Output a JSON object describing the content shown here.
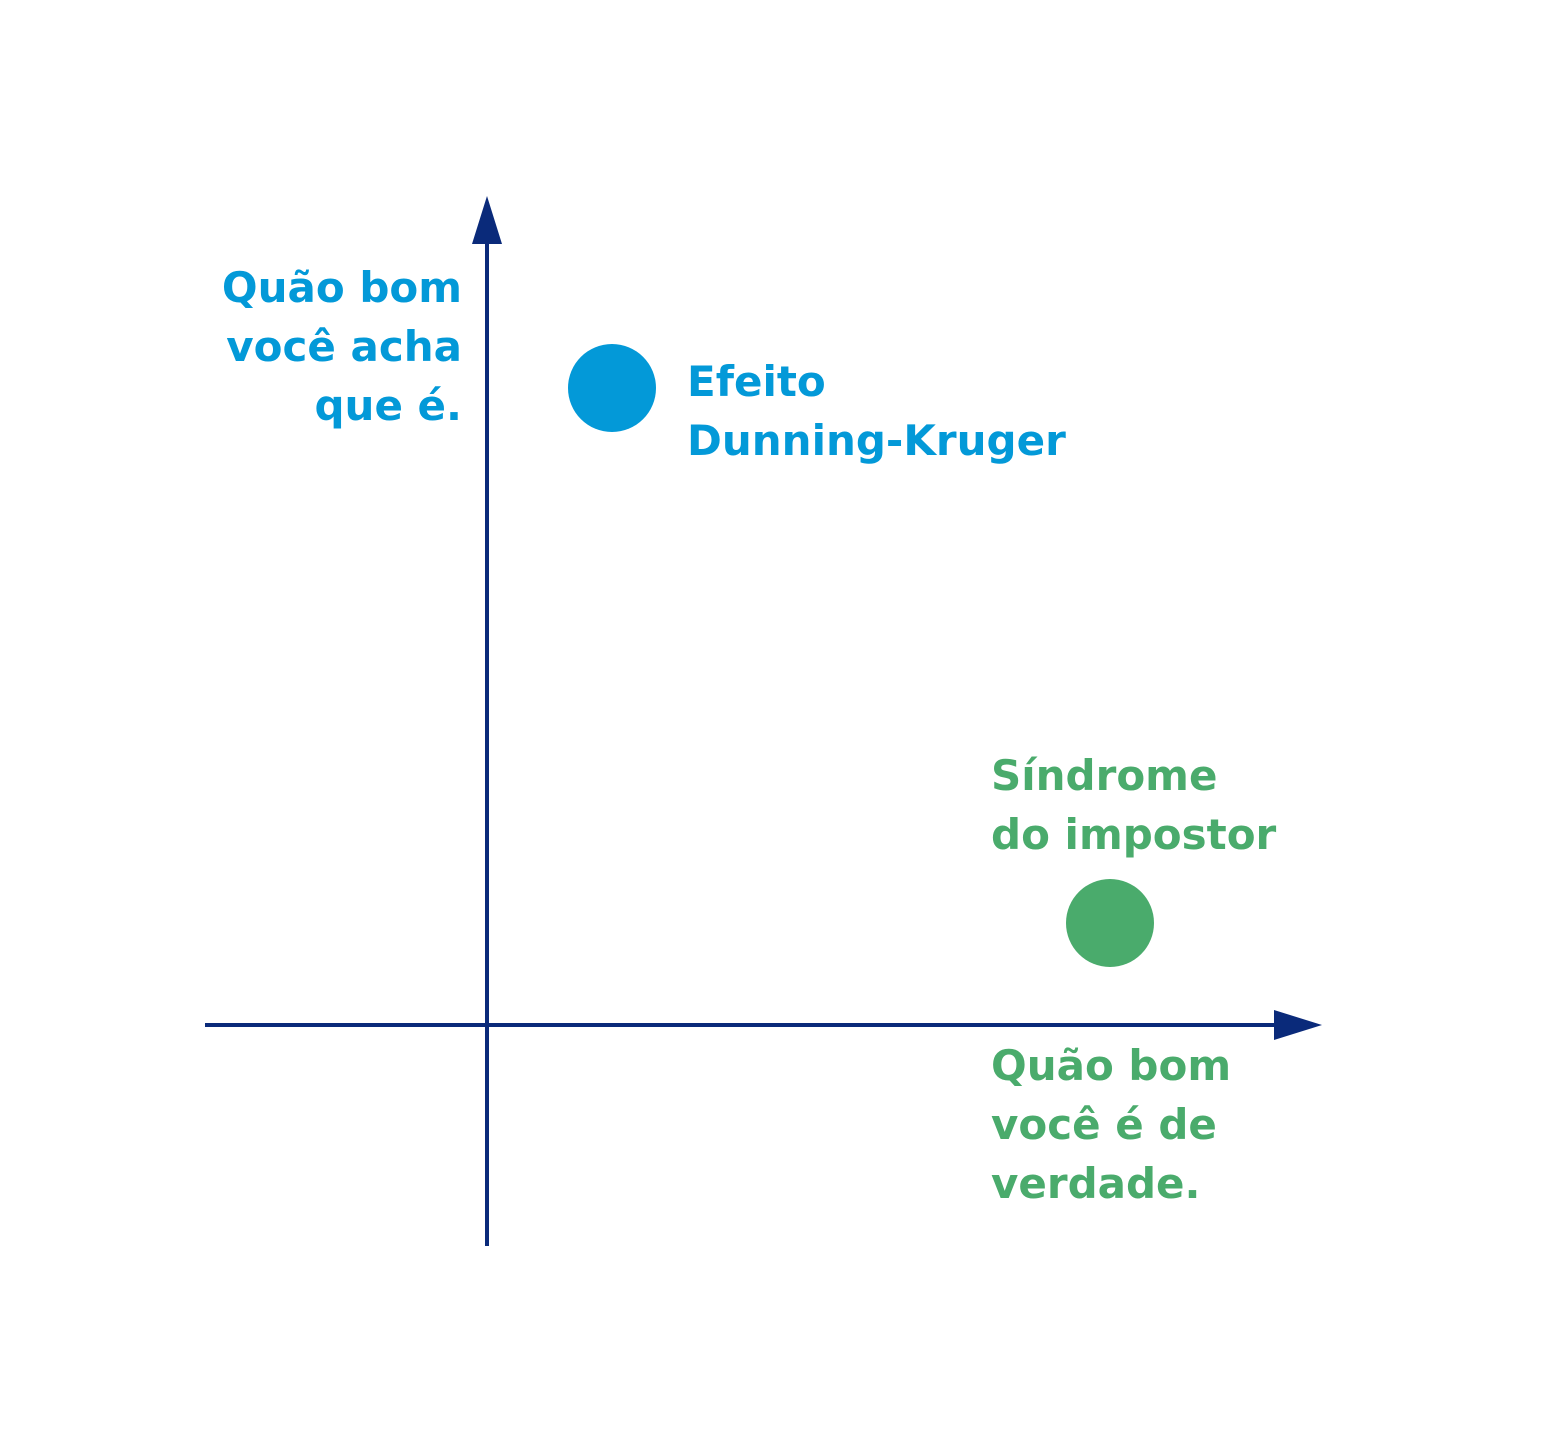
{
  "colors": {
    "axis": "#0a2a7a",
    "dunning_kruger": "#0399d8",
    "impostor": "#4aab6c",
    "background": "#ffffff"
  },
  "axes": {
    "y_label_lines": [
      "Quão bom",
      "você acha",
      "que é."
    ],
    "x_label_lines": [
      "Quão bom",
      "você é de",
      "verdade."
    ]
  },
  "points": [
    {
      "id": "dunning-kruger",
      "label_lines": [
        "Efeito",
        "Dunning-Kruger"
      ],
      "color": "#0399d8"
    },
    {
      "id": "impostor",
      "label_lines": [
        "Síndrome",
        "do impostor"
      ],
      "color": "#4aab6c"
    }
  ]
}
